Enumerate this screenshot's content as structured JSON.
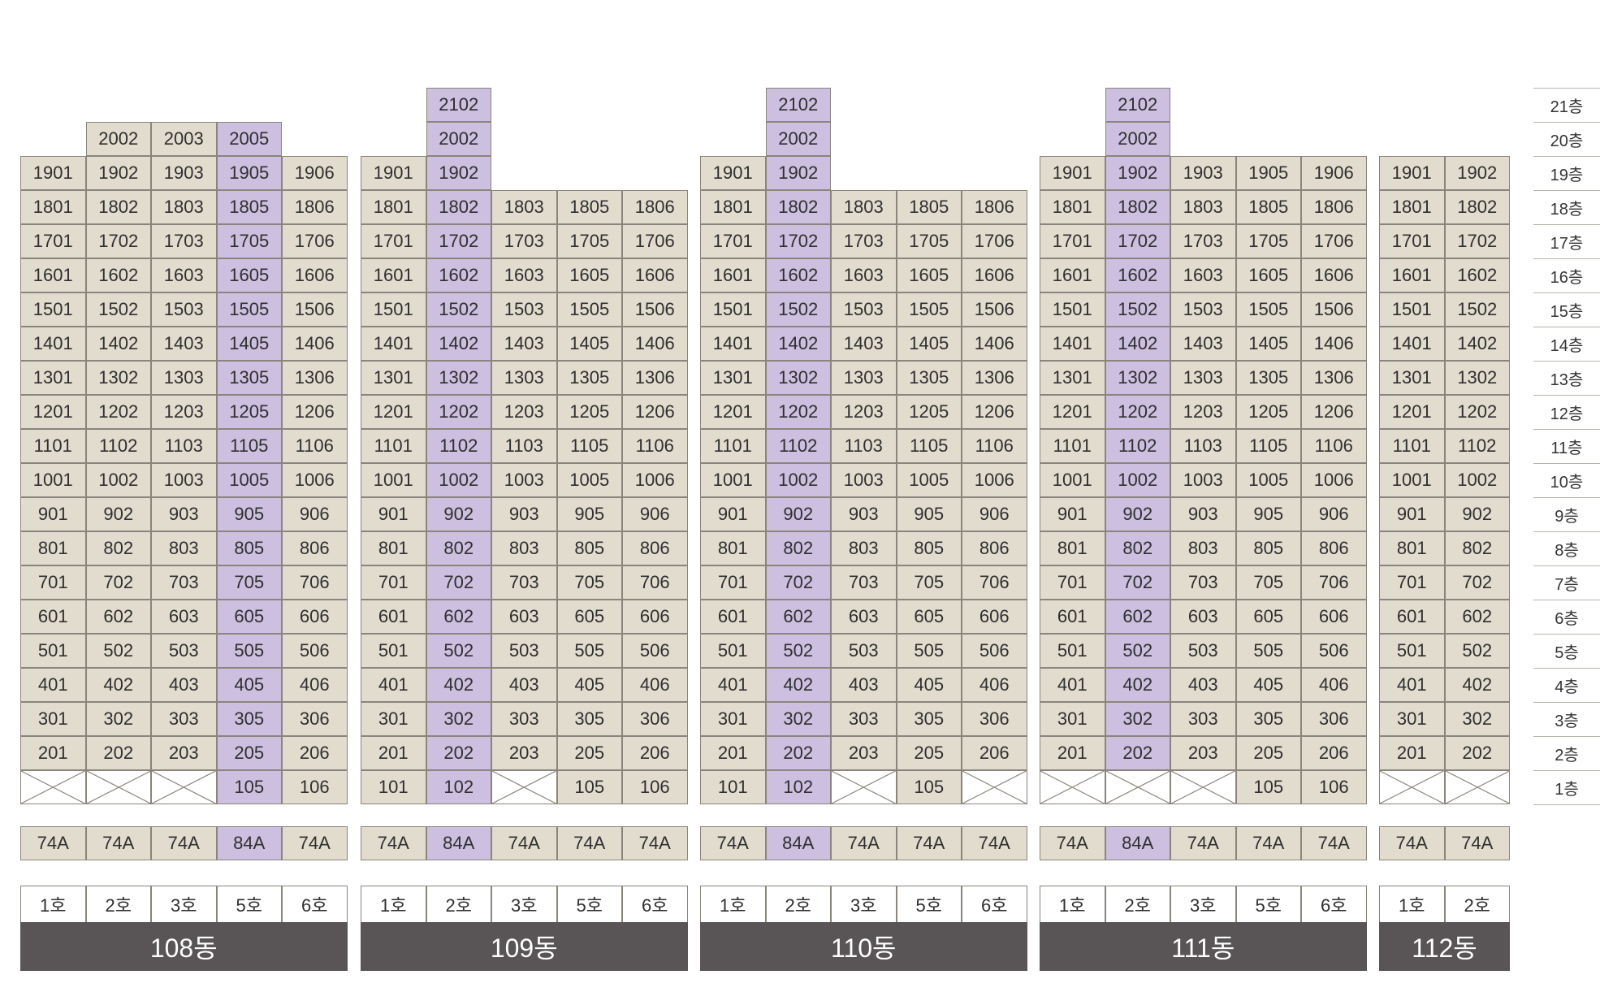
{
  "floors": [
    "1층",
    "2층",
    "3층",
    "4층",
    "5층",
    "6층",
    "7층",
    "8층",
    "9층",
    "10층",
    "11층",
    "12층",
    "13층",
    "14층",
    "15층",
    "16층",
    "17층",
    "18층",
    "19층",
    "20층",
    "21층"
  ],
  "buildings": [
    {
      "name": "108동",
      "units": [
        "1호",
        "2호",
        "3호",
        "5호",
        "6호"
      ],
      "types": [
        "74A",
        "74A",
        "74A",
        "84A",
        "74A"
      ],
      "highlight_col": 3,
      "top_floor": [
        19,
        20,
        20,
        20,
        19
      ],
      "first_floor": [
        "",
        "",
        "",
        "105",
        "106"
      ]
    },
    {
      "name": "109동",
      "units": [
        "1호",
        "2호",
        "3호",
        "5호",
        "6호"
      ],
      "types": [
        "74A",
        "84A",
        "74A",
        "74A",
        "74A"
      ],
      "highlight_col": 1,
      "top_floor": [
        19,
        21,
        18,
        18,
        18
      ],
      "first_floor": [
        "101",
        "102",
        "",
        "105",
        "106"
      ]
    },
    {
      "name": "110동",
      "units": [
        "1호",
        "2호",
        "3호",
        "5호",
        "6호"
      ],
      "types": [
        "74A",
        "84A",
        "74A",
        "74A",
        "74A"
      ],
      "highlight_col": 1,
      "top_floor": [
        19,
        21,
        18,
        18,
        18
      ],
      "first_floor": [
        "101",
        "102",
        "",
        "105",
        ""
      ]
    },
    {
      "name": "111동",
      "units": [
        "1호",
        "2호",
        "3호",
        "5호",
        "6호"
      ],
      "types": [
        "74A",
        "84A",
        "74A",
        "74A",
        "74A"
      ],
      "highlight_col": 1,
      "top_floor": [
        19,
        21,
        19,
        19,
        19
      ],
      "first_floor": [
        "",
        "",
        "",
        "105",
        "106"
      ]
    },
    {
      "name": "112동",
      "units": [
        "1호",
        "2호"
      ],
      "types": [
        "74A",
        "74A"
      ],
      "highlight_col": -1,
      "top_floor": [
        19,
        19
      ],
      "first_floor": [
        "",
        ""
      ]
    }
  ],
  "colors": {
    "unit": "#e2dccf",
    "highlight": "#ccbfe0",
    "border": "#8a857c",
    "building_bar": "#595557"
  }
}
